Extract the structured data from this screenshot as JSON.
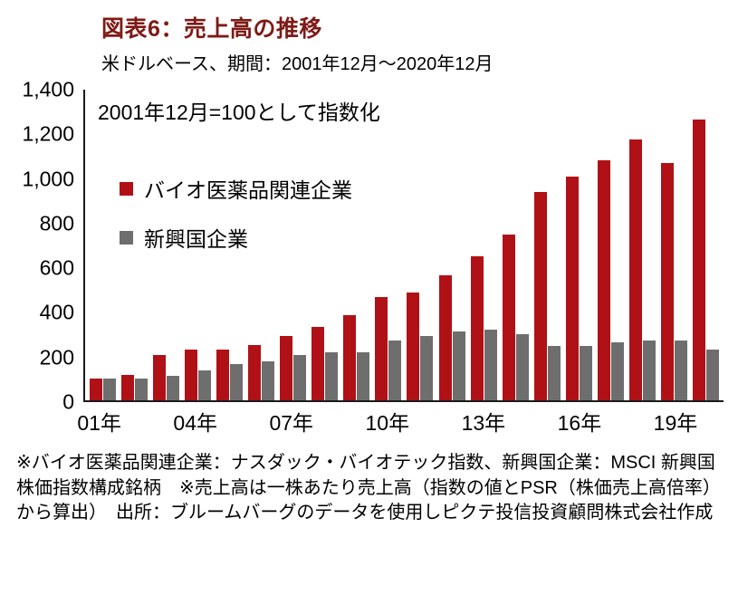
{
  "header": {
    "title": "図表6：売上高の推移",
    "subtitle": "米ドルベース、期間：2001年12月～2020年12月"
  },
  "footnote": "※バイオ医薬品関連企業：ナスダック・バイオテック指数、新興国企業：MSCI 新興国株価指数構成銘柄　※売上高は一株あたり売上高（指数の値とPSR（株価売上高倍率）から算出）　出所：ブルームバーグのデータを使用しピクテ投信投資顧問株式会社作成",
  "chart_data": {
    "type": "bar",
    "title": "図表6：売上高の推移",
    "subtitle": "米ドルベース、期間：2001年12月～2020年12月",
    "annotation": "2001年12月=100として指数化",
    "x_years": [
      "01年",
      "02年",
      "03年",
      "04年",
      "05年",
      "06年",
      "07年",
      "08年",
      "09年",
      "10年",
      "11年",
      "12年",
      "13年",
      "14年",
      "15年",
      "16年",
      "17年",
      "18年",
      "19年",
      "20年"
    ],
    "x_ticks": [
      {
        "index": 0,
        "label": "01年"
      },
      {
        "index": 3,
        "label": "04年"
      },
      {
        "index": 6,
        "label": "07年"
      },
      {
        "index": 9,
        "label": "10年"
      },
      {
        "index": 12,
        "label": "13年"
      },
      {
        "index": 15,
        "label": "16年"
      },
      {
        "index": 18,
        "label": "19年"
      }
    ],
    "series": [
      {
        "name": "バイオ医薬品関連企業",
        "color": "#b01116",
        "values": [
          100,
          115,
          205,
          230,
          230,
          250,
          290,
          330,
          385,
          465,
          485,
          565,
          650,
          745,
          940,
          1010,
          1080,
          1175,
          1070,
          1265
        ]
      },
      {
        "name": "新興国企業",
        "color": "#6e6e6e",
        "values": [
          100,
          100,
          110,
          135,
          165,
          175,
          205,
          215,
          215,
          270,
          290,
          310,
          320,
          300,
          245,
          245,
          260,
          270,
          270,
          230
        ]
      }
    ],
    "ylim": [
      0,
      1400
    ],
    "ytick_step": 200,
    "ytick_labels": [
      "0",
      "200",
      "400",
      "600",
      "800",
      "1,000",
      "1,200",
      "1,400"
    ],
    "grid": false,
    "legend_position": "upper-left-inside"
  }
}
